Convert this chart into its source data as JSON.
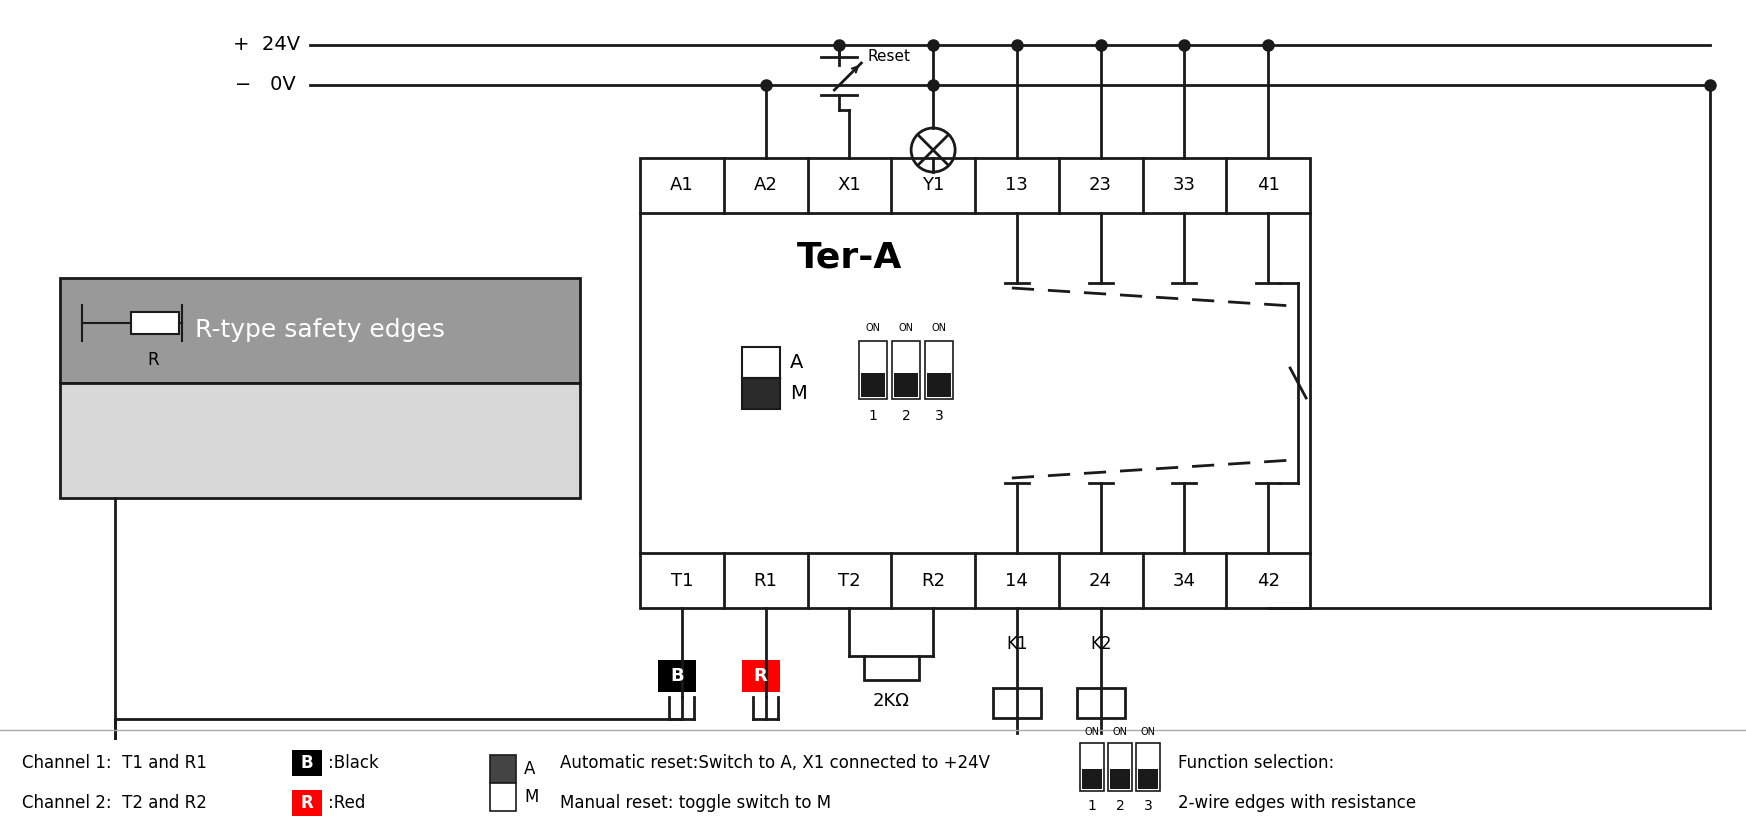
{
  "bg_color": "#ffffff",
  "line_color": "#1a1a1a",
  "relay_title": "Ter-A",
  "top_labels": [
    "A1",
    "A2",
    "X1",
    "Y1",
    "13",
    "23",
    "33",
    "41"
  ],
  "bot_labels": [
    "T1",
    "R1",
    "T2",
    "R2",
    "14",
    "24",
    "34",
    "42"
  ],
  "safety_edge_label": "R-type safety edges",
  "channel1": "Channel 1:  T1 and R1",
  "channel2": "Channel 2:  T2 and R2",
  "black_label": ":Black",
  "red_label": ":Red",
  "auto_reset": "Automatic reset:Switch to A, X1 connected to +24V",
  "manual_reset": "Manual reset: toggle switch to M",
  "func_sel": "Function selection:",
  "func_sel2": "2-wire edges with resistance",
  "reset_text": "Reset"
}
